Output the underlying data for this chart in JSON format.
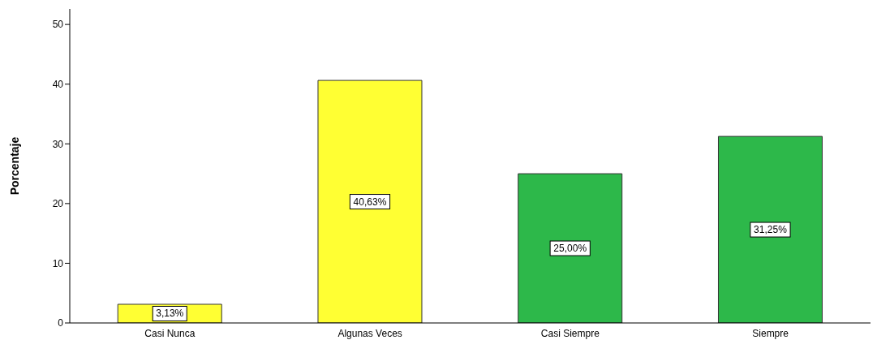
{
  "chart_data": {
    "type": "bar",
    "ylabel": "Porcentaje",
    "categories": [
      "Casi Nunca",
      "Algunas Veces",
      "Casi Siempre",
      "Siempre"
    ],
    "values": [
      3.13,
      40.63,
      25.0,
      31.25
    ],
    "colors": [
      "#ffff33",
      "#ffff33",
      "#2db84a",
      "#2db84a"
    ],
    "value_labels": [
      "3,13%",
      "40,63%",
      "25,00%",
      "31,25%"
    ],
    "ylim": [
      0,
      52.6
    ],
    "yticks": [
      0,
      10,
      20,
      30,
      40,
      50
    ],
    "grid": false,
    "legend": false
  }
}
